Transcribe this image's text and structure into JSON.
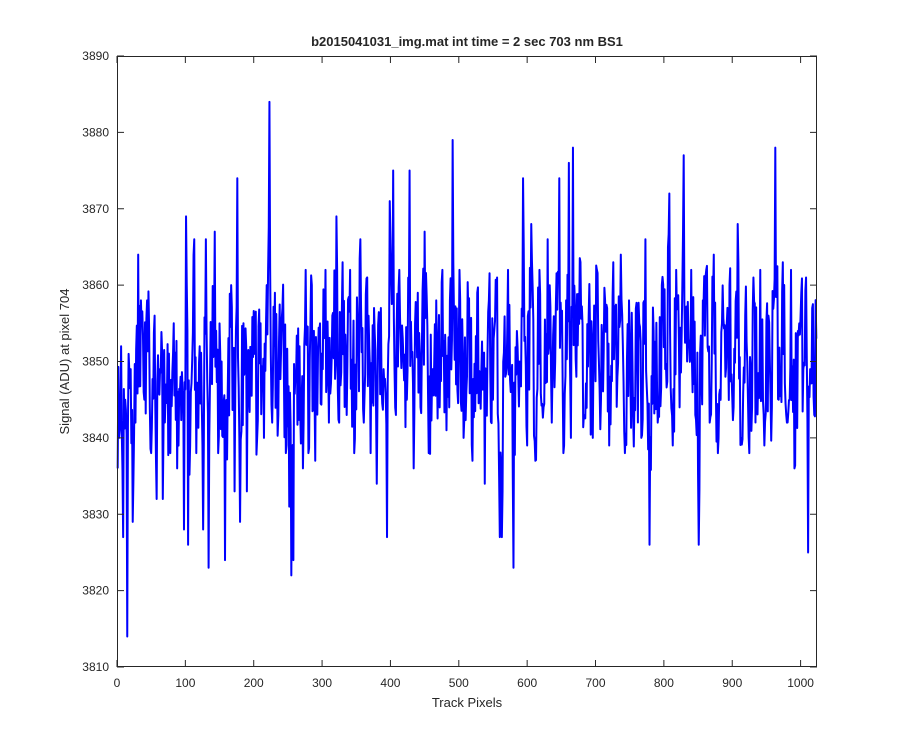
{
  "chart_data": {
    "type": "line",
    "title": "b2015041031_img.mat int time = 2 sec  703 nm BS1",
    "xlabel": "Track Pixels",
    "ylabel": "Signal (ADU) at pixel 704",
    "xlim": [
      0,
      1024
    ],
    "ylim": [
      3810,
      3890
    ],
    "xticks": [
      0,
      100,
      200,
      300,
      400,
      500,
      600,
      700,
      800,
      900,
      1000
    ],
    "yticks": [
      3810,
      3820,
      3830,
      3840,
      3850,
      3860,
      3870,
      3880,
      3890
    ],
    "grid": false,
    "series": [
      {
        "color": "#0000ff",
        "line_width": 2,
        "n_points": 1024,
        "baseline": 3850,
        "min": 3814,
        "max": 3884,
        "description": "noisy signal around ~3850 ADU",
        "anchors": [
          [
            1,
            3836
          ],
          [
            3,
            3840
          ],
          [
            6,
            3852
          ],
          [
            9,
            3827
          ],
          [
            12,
            3845
          ],
          [
            15,
            3814
          ],
          [
            17,
            3851
          ],
          [
            20,
            3849
          ],
          [
            23,
            3829
          ],
          [
            27,
            3842
          ],
          [
            31,
            3864
          ],
          [
            35,
            3858
          ],
          [
            40,
            3845
          ],
          [
            44,
            3858
          ],
          [
            50,
            3838
          ],
          [
            55,
            3856
          ],
          [
            58,
            3832
          ],
          [
            63,
            3849
          ],
          [
            67,
            3832
          ],
          [
            72,
            3847
          ],
          [
            78,
            3838
          ],
          [
            83,
            3855
          ],
          [
            88,
            3836
          ],
          [
            93,
            3848
          ],
          [
            98,
            3828
          ],
          [
            101,
            3869
          ],
          [
            104,
            3826
          ],
          [
            108,
            3846
          ],
          [
            113,
            3866
          ],
          [
            116,
            3838
          ],
          [
            121,
            3852
          ],
          [
            126,
            3828
          ],
          [
            130,
            3866
          ],
          [
            134,
            3823
          ],
          [
            138,
            3849
          ],
          [
            143,
            3867
          ],
          [
            148,
            3838
          ],
          [
            153,
            3850
          ],
          [
            158,
            3824
          ],
          [
            162,
            3846
          ],
          [
            167,
            3860
          ],
          [
            172,
            3833
          ],
          [
            176,
            3874
          ],
          [
            180,
            3829
          ],
          [
            185,
            3855
          ],
          [
            190,
            3833
          ],
          [
            196,
            3848
          ],
          [
            201,
            3851
          ],
          [
            205,
            3840
          ],
          [
            210,
            3855
          ],
          [
            215,
            3840
          ],
          [
            219,
            3860
          ],
          [
            223,
            3884
          ],
          [
            227,
            3842
          ],
          [
            231,
            3859
          ],
          [
            236,
            3843
          ],
          [
            242,
            3857
          ],
          [
            247,
            3838
          ],
          [
            252,
            3831
          ],
          [
            255,
            3822
          ],
          [
            258,
            3824
          ],
          [
            262,
            3848
          ],
          [
            267,
            3852
          ],
          [
            272,
            3836
          ],
          [
            276,
            3862
          ],
          [
            280,
            3838
          ],
          [
            285,
            3860
          ],
          [
            290,
            3837
          ],
          [
            296,
            3854
          ],
          [
            301,
            3849
          ],
          [
            305,
            3862
          ],
          [
            310,
            3842
          ],
          [
            315,
            3856
          ],
          [
            321,
            3869
          ],
          [
            325,
            3842
          ],
          [
            330,
            3863
          ],
          [
            336,
            3843
          ],
          [
            341,
            3862
          ],
          [
            347,
            3838
          ],
          [
            352,
            3855
          ],
          [
            356,
            3866
          ],
          [
            361,
            3842
          ],
          [
            366,
            3861
          ],
          [
            371,
            3838
          ],
          [
            376,
            3857
          ],
          [
            380,
            3834
          ],
          [
            386,
            3857
          ],
          [
            390,
            3849
          ],
          [
            395,
            3827
          ],
          [
            399,
            3871
          ],
          [
            404,
            3875
          ],
          [
            408,
            3843
          ],
          [
            413,
            3862
          ],
          [
            418,
            3853
          ],
          [
            424,
            3845
          ],
          [
            428,
            3875
          ],
          [
            434,
            3836
          ],
          [
            440,
            3859
          ],
          [
            444,
            3844
          ],
          [
            450,
            3867
          ],
          [
            456,
            3838
          ],
          [
            462,
            3849
          ],
          [
            467,
            3858
          ],
          [
            472,
            3844
          ],
          [
            476,
            3862
          ],
          [
            481,
            3849
          ],
          [
            486,
            3844
          ],
          [
            491,
            3879
          ],
          [
            496,
            3847
          ],
          [
            501,
            3862
          ],
          [
            507,
            3840
          ],
          [
            514,
            3856
          ],
          [
            520,
            3837
          ],
          [
            527,
            3859
          ],
          [
            533,
            3849
          ],
          [
            538,
            3834
          ],
          [
            544,
            3858
          ],
          [
            550,
            3845
          ],
          [
            556,
            3861
          ],
          [
            560,
            3827
          ],
          [
            563,
            3827
          ],
          [
            568,
            3848
          ],
          [
            572,
            3862
          ],
          [
            576,
            3846
          ],
          [
            580,
            3823
          ],
          [
            585,
            3854
          ],
          [
            589,
            3850
          ],
          [
            594,
            3874
          ],
          [
            600,
            3839
          ],
          [
            606,
            3868
          ],
          [
            612,
            3837
          ],
          [
            618,
            3862
          ],
          [
            624,
            3844
          ],
          [
            630,
            3866
          ],
          [
            636,
            3842
          ],
          [
            641,
            3850
          ],
          [
            647,
            3874
          ],
          [
            653,
            3838
          ],
          [
            657,
            3858
          ],
          [
            661,
            3876
          ],
          [
            664,
            3840
          ],
          [
            667,
            3878
          ],
          [
            672,
            3848
          ],
          [
            678,
            3863
          ],
          [
            684,
            3843
          ],
          [
            690,
            3856
          ],
          [
            696,
            3840
          ],
          [
            702,
            3862
          ],
          [
            708,
            3845
          ],
          [
            714,
            3858
          ],
          [
            720,
            3839
          ],
          [
            726,
            3863
          ],
          [
            732,
            3848
          ],
          [
            737,
            3864
          ],
          [
            743,
            3838
          ],
          [
            749,
            3858
          ],
          [
            755,
            3843
          ],
          [
            761,
            3852
          ],
          [
            767,
            3840
          ],
          [
            773,
            3866
          ],
          [
            779,
            3826
          ],
          [
            785,
            3854
          ],
          [
            791,
            3842
          ],
          [
            797,
            3860
          ],
          [
            802,
            3849
          ],
          [
            808,
            3872
          ],
          [
            813,
            3839
          ],
          [
            818,
            3862
          ],
          [
            823,
            3844
          ],
          [
            829,
            3877
          ],
          [
            834,
            3850
          ],
          [
            840,
            3862
          ],
          [
            846,
            3843
          ],
          [
            851,
            3826
          ],
          [
            857,
            3858
          ],
          [
            862,
            3862
          ],
          [
            867,
            3842
          ],
          [
            873,
            3864
          ],
          [
            879,
            3838
          ],
          [
            885,
            3855
          ],
          [
            890,
            3848
          ],
          [
            896,
            3860
          ],
          [
            902,
            3844
          ],
          [
            908,
            3868
          ],
          [
            913,
            3840
          ],
          [
            919,
            3856
          ],
          [
            925,
            3838
          ],
          [
            931,
            3861
          ],
          [
            936,
            3845
          ],
          [
            941,
            3862
          ],
          [
            947,
            3839
          ],
          [
            953,
            3856
          ],
          [
            958,
            3844
          ],
          [
            963,
            3878
          ],
          [
            968,
            3845
          ],
          [
            974,
            3863
          ],
          [
            980,
            3842
          ],
          [
            986,
            3862
          ],
          [
            991,
            3836
          ],
          [
            996,
            3854
          ],
          [
            1001,
            3859
          ],
          [
            1004,
            3849
          ],
          [
            1008,
            3861
          ],
          [
            1011,
            3825
          ],
          [
            1014,
            3849
          ],
          [
            1017,
            3857
          ],
          [
            1020,
            3843
          ],
          [
            1023,
            3853
          ]
        ]
      }
    ]
  }
}
